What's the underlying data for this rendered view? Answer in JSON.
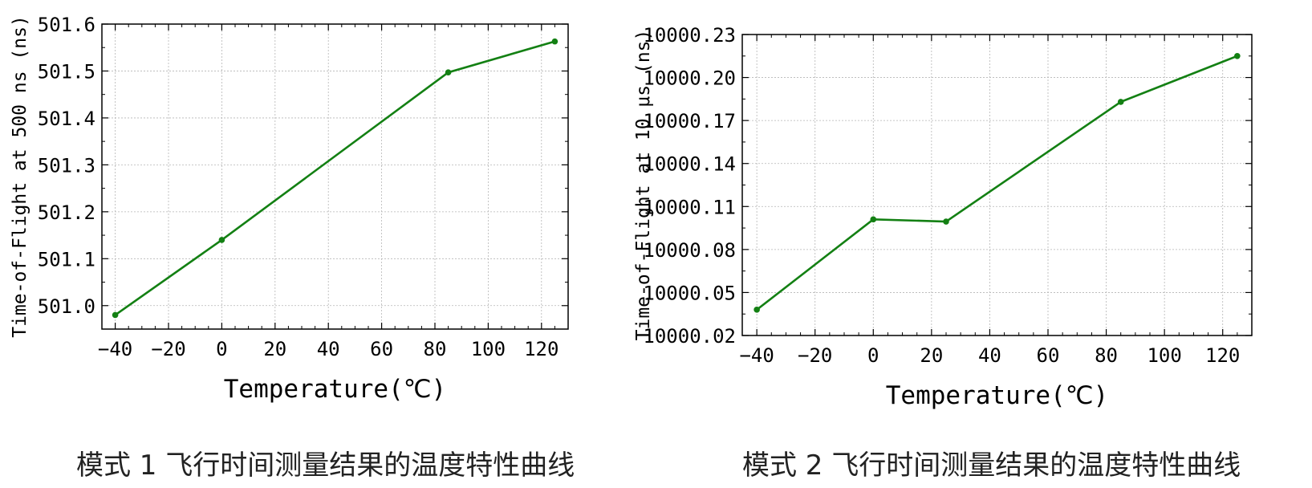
{
  "chart_data": [
    {
      "type": "line",
      "xlabel": "Temperature(℃)",
      "ylabel": "Time-of-Flight at 500 ns (ns)",
      "xlim": [
        -45,
        130
      ],
      "ylim": [
        500.95,
        501.6
      ],
      "xticks": [
        -40,
        -20,
        0,
        20,
        40,
        60,
        80,
        100,
        120
      ],
      "xtick_labels": [
        "−40",
        "−20",
        "0",
        "20",
        "40",
        "60",
        "80",
        "100",
        "120"
      ],
      "yticks": [
        501.0,
        501.1,
        501.2,
        501.3,
        501.4,
        501.5,
        501.6
      ],
      "ytick_labels": [
        "501.0",
        "501.1",
        "501.2",
        "501.3",
        "501.4",
        "501.5",
        "501.6"
      ],
      "grid": true,
      "color": "#138013",
      "series": [
        {
          "x": [
            -40,
            0,
            85,
            125
          ],
          "y": [
            500.98,
            501.14,
            501.497,
            501.563
          ]
        }
      ]
    },
    {
      "type": "line",
      "xlabel": "Temperature(℃)",
      "ylabel": "Time-of-Flight at 10 μs (ns)",
      "xlim": [
        -45,
        130
      ],
      "ylim": [
        10000.02,
        10000.23
      ],
      "xticks": [
        -40,
        -20,
        0,
        20,
        40,
        60,
        80,
        100,
        120
      ],
      "xtick_labels": [
        "−40",
        "−20",
        "0",
        "20",
        "40",
        "60",
        "80",
        "100",
        "120"
      ],
      "yticks": [
        10000.02,
        10000.05,
        10000.08,
        10000.11,
        10000.14,
        10000.17,
        10000.2,
        10000.23
      ],
      "ytick_labels": [
        "10000.02",
        "10000.05",
        "10000.08",
        "10000.11",
        "10000.14",
        "10000.17",
        "10000.20",
        "10000.23"
      ],
      "grid": true,
      "color": "#138013",
      "series": [
        {
          "x": [
            -40,
            0,
            25,
            85,
            125
          ],
          "y": [
            10000.038,
            10000.101,
            10000.0995,
            10000.183,
            10000.215
          ]
        }
      ]
    }
  ],
  "captions": {
    "chart1": "模式 1 飞行时间测量结果的温度特性曲线",
    "chart2": "模式 2 飞行时间测量结果的温度特性曲线"
  }
}
